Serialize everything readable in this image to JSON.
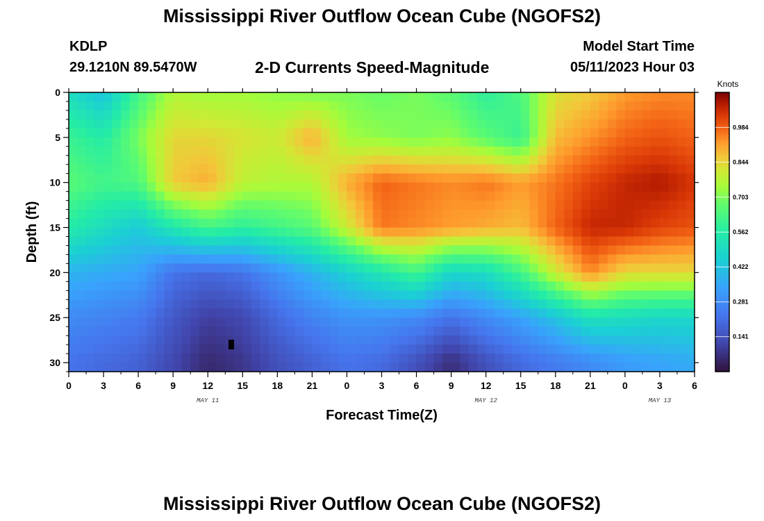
{
  "title": "Mississippi River Outflow Ocean Cube (NGOFS2)",
  "station": {
    "id": "KDLP",
    "coords": "29.1210N  89.5470W"
  },
  "subtitle": "2-D Currents Speed-Magnitude",
  "model_start": {
    "label": "Model Start Time",
    "value": "05/11/2023 Hour 03"
  },
  "footer_title": "Mississippi River Outflow Ocean Cube (NGOFS2)",
  "chart_data": {
    "type": "heatmap",
    "title": "2-D Currents Speed-Magnitude",
    "xlabel": "Forecast Time(Z)",
    "ylabel": "Depth (ft)",
    "x_range_hours": [
      0,
      54
    ],
    "y_range_ft": [
      0,
      31
    ],
    "y_inverted": true,
    "x_tick_labels": [
      "0",
      "3",
      "6",
      "9",
      "12",
      "15",
      "18",
      "21",
      "0",
      "3",
      "6",
      "9",
      "12",
      "15",
      "18",
      "21",
      "0",
      "3",
      "6"
    ],
    "y_tick_labels": [
      "0",
      "5",
      "10",
      "15",
      "20",
      "25",
      "30"
    ],
    "date_labels": [
      {
        "text": "MAY 11",
        "hour": 12
      },
      {
        "text": "MAY 12",
        "hour": 36
      },
      {
        "text": "MAY 13",
        "hour": 51
      }
    ],
    "colorbar": {
      "title": "Knots",
      "min": 0,
      "max": 1.125,
      "ticks": [
        "0.984",
        "0.844",
        "0.703",
        "0.562",
        "0.422",
        "0.281",
        "0.141"
      ],
      "tick_values": [
        0.984,
        0.844,
        0.703,
        0.562,
        0.422,
        0.281,
        0.141
      ]
    },
    "speed_field_knots": {
      "x_hours": [
        0,
        3,
        6,
        9,
        12,
        15,
        18,
        21,
        24,
        27,
        30,
        33,
        36,
        39,
        42,
        45,
        48,
        51,
        54
      ],
      "depth_ft": [
        0,
        5,
        10,
        15,
        20,
        25,
        30
      ],
      "values": [
        [
          0.5,
          0.42,
          0.62,
          0.76,
          0.74,
          0.74,
          0.72,
          0.7,
          0.7,
          0.68,
          0.7,
          0.66,
          0.58,
          0.64,
          0.82,
          0.86,
          0.92,
          0.94,
          0.94
        ],
        [
          0.6,
          0.56,
          0.7,
          0.84,
          0.84,
          0.82,
          0.8,
          0.9,
          0.74,
          0.72,
          0.7,
          0.72,
          0.66,
          0.6,
          0.88,
          0.93,
          0.98,
          1.0,
          0.98
        ],
        [
          0.66,
          0.62,
          0.64,
          0.86,
          0.9,
          0.78,
          0.76,
          0.76,
          0.9,
          0.98,
          0.96,
          0.94,
          0.96,
          0.92,
          0.96,
          1.02,
          1.06,
          1.08,
          1.04
        ],
        [
          0.56,
          0.5,
          0.44,
          0.54,
          0.62,
          0.58,
          0.62,
          0.66,
          0.8,
          0.96,
          0.94,
          0.92,
          0.9,
          0.88,
          0.98,
          1.06,
          1.06,
          1.02,
          1.0
        ],
        [
          0.38,
          0.36,
          0.34,
          0.22,
          0.2,
          0.22,
          0.3,
          0.38,
          0.46,
          0.54,
          0.62,
          0.48,
          0.5,
          0.62,
          0.8,
          0.94,
          0.84,
          0.84,
          0.84
        ],
        [
          0.28,
          0.26,
          0.24,
          0.16,
          0.1,
          0.12,
          0.2,
          0.26,
          0.3,
          0.3,
          0.28,
          0.22,
          0.28,
          0.34,
          0.42,
          0.52,
          0.5,
          0.48,
          0.48
        ],
        [
          0.22,
          0.2,
          0.18,
          0.12,
          0.05,
          0.08,
          0.14,
          0.18,
          0.22,
          0.2,
          0.14,
          0.06,
          0.14,
          0.2,
          0.24,
          0.28,
          0.32,
          0.34,
          0.36
        ]
      ]
    }
  }
}
